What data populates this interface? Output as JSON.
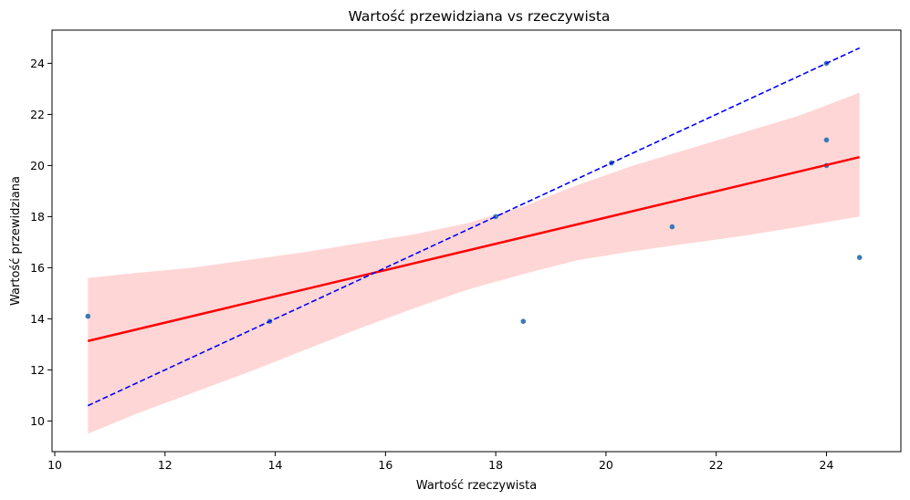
{
  "chart_data": {
    "type": "scatter",
    "title": "Wartość przewidziana vs rzeczywista",
    "xlabel": "Wartość rzeczywista",
    "ylabel": "Wartość przewidziana",
    "xlim": [
      9.95,
      25.35
    ],
    "ylim": [
      8.8,
      25.3
    ],
    "xticks": [
      10,
      12,
      14,
      16,
      18,
      20,
      22,
      24
    ],
    "yticks": [
      10,
      12,
      14,
      16,
      18,
      20,
      22,
      24
    ],
    "grid": false,
    "points": [
      {
        "x": 10.6,
        "y": 14.1
      },
      {
        "x": 13.9,
        "y": 13.9
      },
      {
        "x": 18.0,
        "y": 18.0
      },
      {
        "x": 18.5,
        "y": 13.9
      },
      {
        "x": 20.1,
        "y": 20.1
      },
      {
        "x": 21.2,
        "y": 17.6
      },
      {
        "x": 24.0,
        "y": 24.0
      },
      {
        "x": 24.0,
        "y": 21.0
      },
      {
        "x": 24.0,
        "y": 20.0
      },
      {
        "x": 24.6,
        "y": 16.4
      }
    ],
    "regression_line": {
      "x": [
        10.6,
        24.6
      ],
      "y": [
        13.13,
        20.33
      ]
    },
    "confidence_band": {
      "x": [
        10.6,
        11.5,
        12.5,
        13.5,
        14.5,
        15.5,
        16.5,
        17.5,
        18.5,
        19.5,
        20.5,
        21.5,
        22.5,
        23.5,
        24.6
      ],
      "upper": [
        15.6,
        15.8,
        16.0,
        16.3,
        16.6,
        16.95,
        17.3,
        17.75,
        18.4,
        19.25,
        20.0,
        20.65,
        21.3,
        21.95,
        22.85
      ],
      "lower": [
        9.5,
        10.3,
        11.1,
        11.9,
        12.75,
        13.6,
        14.4,
        15.15,
        15.75,
        16.3,
        16.65,
        16.95,
        17.25,
        17.6,
        18.0
      ]
    },
    "identity_line": {
      "x": [
        10.6,
        24.6
      ],
      "y": [
        10.6,
        24.6
      ]
    },
    "colors": {
      "points": "#3b7ab8",
      "regression": "#ff0000",
      "band": "#ffd6d6",
      "identity": "#0000ff"
    }
  }
}
